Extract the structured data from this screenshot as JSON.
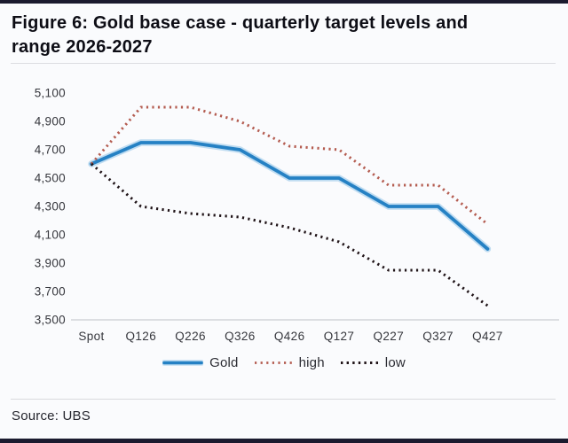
{
  "page": {
    "title": "Figure 6: Gold base case - quarterly target levels and range 2026-2027",
    "source_label": "Source: UBS"
  },
  "colors": {
    "accent_bar": "#1b1b2f",
    "gold_line": "#2581c4",
    "gold_halo": "#bfdcf1",
    "high_line": "#b45c50",
    "low_line": "#201418",
    "axis_line": "#c9ccd1",
    "tick_text": "#36373d"
  },
  "chart_data": {
    "type": "line",
    "title": "Figure 6: Gold base case - quarterly target levels and range 2026-2027",
    "categories": [
      "Spot",
      "Q126",
      "Q226",
      "Q326",
      "Q426",
      "Q127",
      "Q227",
      "Q327",
      "Q427"
    ],
    "series": [
      {
        "name": "Gold",
        "style": "solid",
        "color": "#2581c4",
        "values": [
          4600,
          4750,
          4750,
          4700,
          4500,
          4500,
          4300,
          4300,
          4000
        ]
      },
      {
        "name": "high",
        "style": "dotted",
        "color": "#b45c50",
        "values": [
          4600,
          5000,
          5000,
          4900,
          4725,
          4700,
          4450,
          4450,
          4175
        ]
      },
      {
        "name": "low",
        "style": "dotted",
        "color": "#201418",
        "values": [
          4600,
          4300,
          4250,
          4225,
          4150,
          4050,
          3850,
          3850,
          3600
        ]
      }
    ],
    "ylim": [
      3500,
      5100
    ],
    "ytick_step": 200,
    "ytick_labels": [
      "5,100",
      "4,900",
      "4,700",
      "4,500",
      "4,300",
      "4,100",
      "3,900",
      "3,700",
      "3,500"
    ],
    "xlabel": "",
    "ylabel": "",
    "grid": false,
    "legend_position": "bottom",
    "source": "Source: UBS"
  }
}
